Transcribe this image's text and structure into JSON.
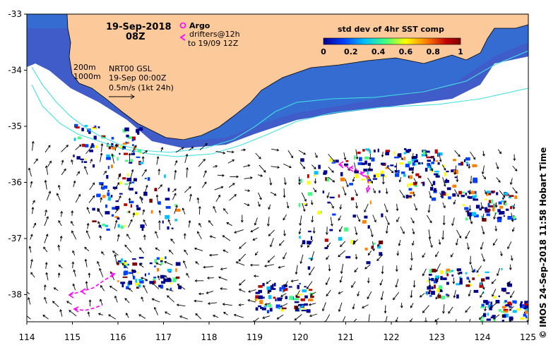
{
  "map": {
    "date_label": "19-Sep-2018",
    "time_label": "08Z",
    "legend": {
      "argo_label": "Argo",
      "drifters_label": "drifters@12h",
      "drifters_sub": "to 19/09 12Z",
      "argo_color": "#ff00ff",
      "drifter_color": "#ff00ff"
    },
    "colorbar": {
      "title": "std dev of 4hr SST comp",
      "ticks": [
        "0",
        "0.2",
        "0.4",
        "0.6",
        "0.8",
        "1"
      ],
      "colors": [
        "#00008f",
        "#0040ff",
        "#00c0ff",
        "#40ff80",
        "#ffff00",
        "#ff8000",
        "#c00000",
        "#800000"
      ]
    },
    "contours": {
      "depth1": "200m",
      "depth2": "1000m"
    },
    "product": {
      "name": "NRT00 GSL",
      "date": "19-Sep 00:00Z",
      "scale": "0.5m/s (1kt 24h)"
    },
    "x_ticks": [
      "114",
      "115",
      "116",
      "117",
      "118",
      "119",
      "120",
      "121",
      "122",
      "123",
      "124",
      "125"
    ],
    "y_ticks": [
      "-33",
      "-34",
      "-35",
      "-36",
      "-37",
      "-38"
    ],
    "credit": "© IMOS 24-Sep-2018 11:58 Hobart Time",
    "land_color": "#fbc99a",
    "contour_color": "#40e0e0"
  }
}
